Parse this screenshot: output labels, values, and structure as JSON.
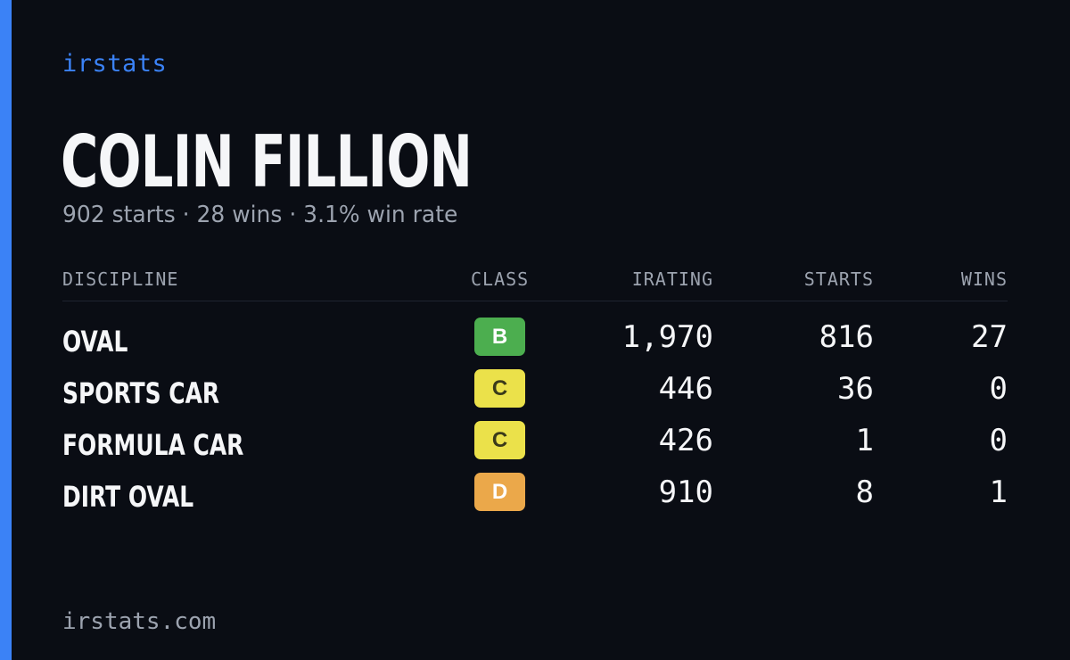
{
  "brand": "irstats",
  "driver": {
    "name": "COLIN FILLION",
    "summary": "902 starts · 28 wins · 3.1% win rate"
  },
  "table": {
    "headers": {
      "discipline": "DISCIPLINE",
      "class": "CLASS",
      "irating": "IRATING",
      "starts": "STARTS",
      "wins": "WINS"
    },
    "rows": [
      {
        "discipline": "OVAL",
        "class": "B",
        "class_color": "#4cae4f",
        "class_text_color": "#ffffff",
        "irating": "1,970",
        "starts": "816",
        "wins": "27"
      },
      {
        "discipline": "SPORTS CAR",
        "class": "C",
        "class_color": "#ebe14a",
        "class_text_color": "#3a3a1a",
        "irating": "446",
        "starts": "36",
        "wins": "0"
      },
      {
        "discipline": "FORMULA CAR",
        "class": "C",
        "class_color": "#ebe14a",
        "class_text_color": "#3a3a1a",
        "irating": "426",
        "starts": "1",
        "wins": "0"
      },
      {
        "discipline": "DIRT OVAL",
        "class": "D",
        "class_color": "#eba84a",
        "class_text_color": "#ffffff",
        "irating": "910",
        "starts": "8",
        "wins": "1"
      }
    ]
  },
  "footer": "irstats.com",
  "colors": {
    "background": "#0a0d14",
    "accent": "#3b82f6",
    "muted": "#9ca3af",
    "text": "#f5f6f8"
  }
}
